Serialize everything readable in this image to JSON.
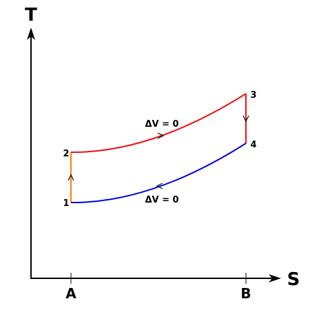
{
  "axes": {
    "y_label": "T",
    "x_label": "S",
    "x_ticks": [
      "A",
      "B"
    ]
  },
  "nodes": [
    {
      "label": "1"
    },
    {
      "label": "2"
    },
    {
      "label": "3"
    },
    {
      "label": "4"
    }
  ],
  "edges": [
    {
      "label": "ΔV = 0"
    },
    {
      "label": "ΔV = 0"
    }
  ]
}
